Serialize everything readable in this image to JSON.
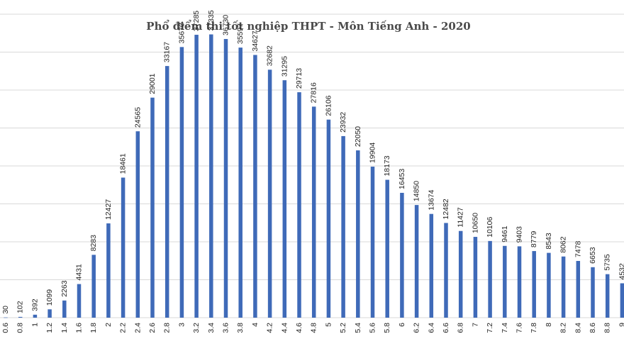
{
  "chart_data": {
    "type": "bar",
    "title": "Phổ điểm thi tốt nghiệp THPT - Môn Tiếng Anh - 2020",
    "categories": [
      "0.6",
      "0.8",
      "1",
      "1.2",
      "1.4",
      "1.6",
      "1.8",
      "2",
      "2.2",
      "2.4",
      "2.6",
      "2.8",
      "3",
      "3.2",
      "3.4",
      "3.6",
      "3.8",
      "4",
      "4.2",
      "4.4",
      "4.6",
      "4.8",
      "5",
      "5.2",
      "5.4",
      "5.6",
      "5.8",
      "6",
      "6.2",
      "6.4",
      "6.6",
      "6.8",
      "7",
      "7.2",
      "7.4",
      "7.6",
      "7.8",
      "8",
      "8.2",
      "8.4",
      "8.6",
      "8.8",
      "9"
    ],
    "values": [
      30,
      102,
      392,
      1099,
      2263,
      4431,
      8283,
      12427,
      18461,
      24565,
      29001,
      33167,
      35670,
      37285,
      37335,
      36730,
      35597,
      34627,
      32682,
      31295,
      29713,
      27816,
      26106,
      23932,
      22050,
      19904,
      18173,
      16453,
      14850,
      13674,
      12482,
      11427,
      10650,
      10106,
      9461,
      9403,
      8779,
      8543,
      8062,
      7478,
      6653,
      5735,
      4532
    ],
    "ylim": [
      0,
      40000
    ],
    "grid": true,
    "bar_color": "#3f6ab8",
    "grid_color": "#d9d9d9"
  }
}
